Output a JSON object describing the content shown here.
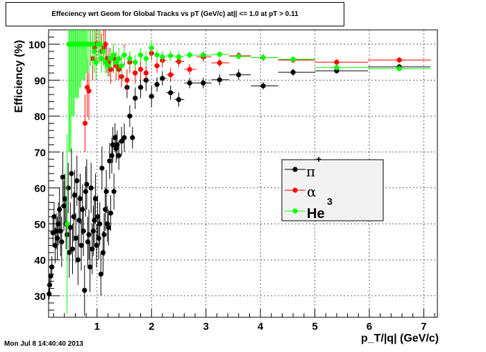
{
  "timestamp": "Mon Jul  8 14:40:40 2013",
  "chart_data": {
    "type": "scatter",
    "title": "Effeciency wrt Geom for Global Tracks vs pT (GeV/c) at|| <= 1.0 at pT > 0.11",
    "xlabel": "p_T/|q| (GeV/c)",
    "ylabel": "Efficiency (%)",
    "xlim": [
      0.11,
      7.25
    ],
    "ylim": [
      24,
      104
    ],
    "xticks": [
      "1",
      "2",
      "3",
      "4",
      "5",
      "6",
      "7"
    ],
    "yticks": [
      "30",
      "40",
      "50",
      "60",
      "70",
      "80",
      "90",
      "100"
    ],
    "grid": true,
    "legend": {
      "placement": "center-right",
      "entries": [
        "π",
        "+",
        "α",
        "3",
        "He"
      ]
    },
    "series": [
      {
        "name": "π+",
        "color": "#000000",
        "x": [
          0.12,
          0.13,
          0.15,
          0.17,
          0.19,
          0.21,
          0.23,
          0.25,
          0.27,
          0.29,
          0.31,
          0.33,
          0.35,
          0.37,
          0.39,
          0.41,
          0.43,
          0.45,
          0.47,
          0.49,
          0.51,
          0.53,
          0.55,
          0.57,
          0.59,
          0.61,
          0.63,
          0.65,
          0.67,
          0.69,
          0.71,
          0.73,
          0.75,
          0.77,
          0.79,
          0.81,
          0.83,
          0.85,
          0.87,
          0.89,
          0.91,
          0.93,
          0.95,
          0.97,
          0.99,
          1.01,
          1.03,
          1.05,
          1.07,
          1.09,
          1.11,
          1.13,
          1.15,
          1.17,
          1.19,
          1.21,
          1.23,
          1.25,
          1.27,
          1.29,
          1.31,
          1.33,
          1.35,
          1.37,
          1.4,
          1.45,
          1.5,
          1.55,
          1.6,
          1.65,
          1.7,
          1.8,
          1.9,
          2.0,
          2.1,
          2.2,
          2.35,
          2.5,
          2.7,
          2.95,
          3.25,
          3.6,
          4.05,
          4.6,
          5.4,
          6.55
        ],
        "y": [
          30.5,
          33,
          35.5,
          38,
          47.5,
          52,
          44,
          48,
          46,
          50,
          54,
          48,
          45,
          63,
          55,
          57,
          50,
          47,
          60,
          42,
          49,
          64,
          43,
          52,
          58,
          46,
          62,
          40,
          51,
          57,
          44,
          54,
          48,
          31.5,
          59,
          61,
          45,
          47,
          38,
          60,
          43,
          48,
          51,
          57,
          44,
          52,
          46,
          50,
          36,
          65.5,
          42,
          47,
          54,
          59,
          50,
          49,
          67.5,
          53,
          69,
          72,
          59,
          74,
          71,
          72,
          69,
          73,
          74,
          88,
          80,
          74,
          85,
          88,
          90,
          85.5,
          88.8,
          90.5,
          86.5,
          84.6,
          89.2,
          89.2,
          90.1,
          91.5,
          88.4,
          92.2,
          92.6,
          93.7
        ],
        "yerr": [
          1.5,
          2,
          2,
          3,
          4,
          4,
          5,
          5,
          6,
          6,
          6,
          7,
          7,
          7,
          7,
          7,
          7,
          7,
          7,
          7,
          7,
          7,
          7,
          7,
          7,
          7,
          7,
          7,
          7,
          7,
          7,
          7,
          7,
          7,
          7,
          7,
          7,
          7,
          7,
          7,
          7,
          7,
          7,
          7,
          6,
          6,
          6,
          6,
          6,
          6,
          6,
          6,
          6,
          6,
          5,
          5,
          5,
          5,
          5,
          5,
          5,
          4,
          4,
          4,
          4,
          4,
          4,
          3,
          3,
          3,
          3,
          3,
          3,
          3,
          2,
          2,
          2,
          2,
          1.5,
          1.5,
          1.5,
          1.5,
          1,
          1,
          0.8,
          0.8
        ]
      },
      {
        "name": "α",
        "color": "#ff0000",
        "x": [
          0.78,
          0.82,
          0.85,
          0.88,
          0.92,
          0.95,
          0.98,
          1.02,
          1.05,
          1.08,
          1.12,
          1.15,
          1.18,
          1.22,
          1.25,
          1.3,
          1.35,
          1.4,
          1.45,
          1.5,
          1.55,
          1.6,
          1.7,
          1.8,
          1.9,
          2.0,
          2.1,
          2.2,
          2.35,
          2.5,
          2.7,
          2.95,
          3.25,
          3.6,
          4.05,
          4.6,
          5.4,
          6.55
        ],
        "y": [
          78,
          88,
          87,
          100,
          96,
          99,
          100,
          100,
          100,
          98,
          99,
          100,
          96,
          95,
          93,
          96,
          94,
          93,
          91,
          97,
          90,
          95,
          92,
          93,
          92,
          97.5,
          94,
          95.5,
          91.5,
          95.2,
          93,
          96.5,
          94.8,
          96.8,
          96.3,
          95.6,
          95,
          95.6
        ],
        "yerr": [
          8,
          8,
          8,
          6,
          6,
          5,
          5,
          5,
          5,
          5,
          5,
          4,
          4,
          4,
          4,
          4,
          4,
          3,
          3,
          3,
          3,
          3,
          3,
          3,
          2,
          2,
          2,
          2,
          2,
          1.5,
          1.5,
          1.5,
          1.2,
          1,
          1,
          0.8,
          0.8,
          0.8
        ]
      },
      {
        "name": "He3",
        "color": "#00ff00",
        "x": [
          0.45,
          0.48,
          0.5,
          0.52,
          0.54,
          0.56,
          0.58,
          0.6,
          0.62,
          0.64,
          0.66,
          0.68,
          0.7,
          0.72,
          0.74,
          0.76,
          0.78,
          0.8,
          0.82,
          0.85,
          0.88,
          0.92,
          0.95,
          0.98,
          1.02,
          1.05,
          1.08,
          1.12,
          1.15,
          1.2,
          1.25,
          1.3,
          1.35,
          1.4,
          1.45,
          1.5,
          1.6,
          1.7,
          1.8,
          1.9,
          2.0,
          2.1,
          2.2,
          2.35,
          2.5,
          2.7,
          2.95,
          3.25,
          3.6,
          4.05,
          4.6,
          5.4,
          6.55
        ],
        "y": [
          50,
          100,
          100,
          100,
          100,
          100,
          100,
          100,
          100,
          100,
          100,
          100,
          100,
          100,
          100,
          100,
          100,
          100,
          100,
          100,
          100,
          100,
          98,
          95,
          100,
          100,
          96,
          98,
          95,
          94,
          96,
          97,
          95,
          96,
          94,
          97,
          96,
          95,
          97,
          96,
          99,
          97,
          96.5,
          96.8,
          96.5,
          97,
          97,
          97.2,
          96.6,
          96.3,
          95.8,
          93.5,
          93.2
        ],
        "yerr": [
          25,
          30,
          30,
          30,
          20,
          20,
          20,
          15,
          15,
          15,
          15,
          12,
          12,
          10,
          10,
          10,
          10,
          8,
          8,
          8,
          6,
          6,
          6,
          5,
          5,
          4,
          4,
          4,
          3,
          3,
          3,
          3,
          3,
          3,
          3,
          2,
          2,
          2,
          2,
          2,
          2,
          1.5,
          1.5,
          1.5,
          1.5,
          1,
          1,
          1,
          0.8,
          0.8,
          0.8,
          0.8,
          0.8
        ]
      }
    ]
  }
}
